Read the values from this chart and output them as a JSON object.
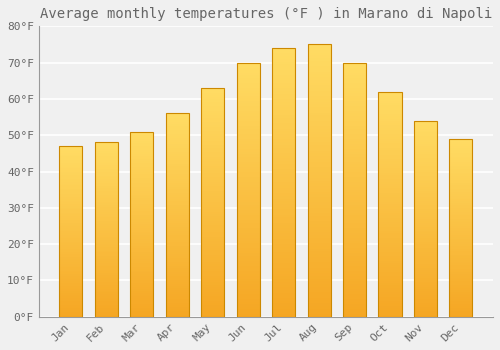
{
  "title": "Average monthly temperatures (°F ) in Marano di Napoli",
  "months": [
    "Jan",
    "Feb",
    "Mar",
    "Apr",
    "May",
    "Jun",
    "Jul",
    "Aug",
    "Sep",
    "Oct",
    "Nov",
    "Dec"
  ],
  "values": [
    47,
    48,
    51,
    56,
    63,
    70,
    74,
    75,
    70,
    62,
    54,
    49
  ],
  "bar_color_bottom": "#F5A623",
  "bar_color_top": "#FFD966",
  "bar_color_mid": "#FFBB33",
  "bar_edge_color": "#CC8800",
  "background_color": "#F0F0F0",
  "grid_color": "#FFFFFF",
  "text_color": "#666666",
  "ylim": [
    0,
    80
  ],
  "yticks": [
    0,
    10,
    20,
    30,
    40,
    50,
    60,
    70,
    80
  ],
  "title_fontsize": 10,
  "tick_fontsize": 8,
  "font_family": "monospace"
}
